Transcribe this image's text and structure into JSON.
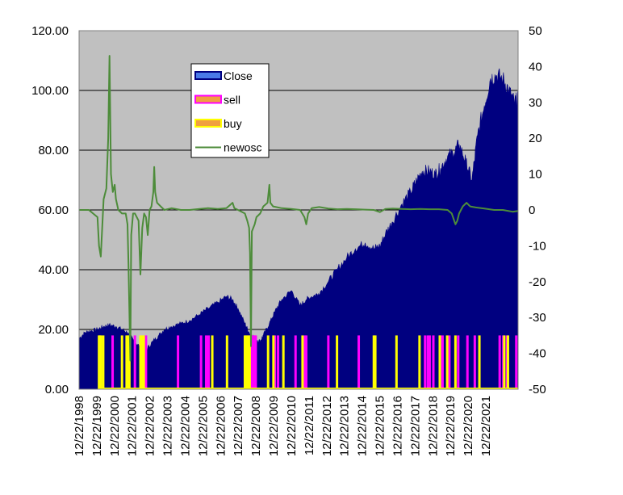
{
  "chart_data": {
    "type": "area",
    "x_tick_labels": [
      "12/22/1998",
      "12/22/1999",
      "12/22/2000",
      "12/22/2001",
      "12/22/2002",
      "12/22/2003",
      "12/22/2004",
      "12/22/2005",
      "12/22/2006",
      "12/22/2007",
      "12/22/2008",
      "12/22/2009",
      "12/22/2010",
      "12/22/2011",
      "12/22/2012",
      "12/22/2013",
      "12/22/2014",
      "12/22/2015",
      "12/22/2016",
      "12/22/2017",
      "12/22/2018",
      "12/22/2019",
      "12/22/2020",
      "12/22/2021"
    ],
    "y_left": {
      "min": 0,
      "max": 120,
      "step": 20,
      "tick_labels": [
        "0.00",
        "20.00",
        "40.00",
        "60.00",
        "80.00",
        "100.00",
        "120.00"
      ]
    },
    "y_right": {
      "min": -50,
      "max": 50,
      "step": 10,
      "tick_labels": [
        "-50",
        "-40",
        "-30",
        "-20",
        "-10",
        "0",
        "10",
        "20",
        "30",
        "40",
        "50"
      ]
    },
    "x_range": [
      1998.97,
      2022.8
    ],
    "grid": "horizontal major gridlines (left axis)",
    "plot_background": "#c0c0c0",
    "legend": {
      "placement": "upper-left inside plot",
      "entries": [
        {
          "label": "Close",
          "color": "#000080",
          "style": "area"
        },
        {
          "label": "sell",
          "color": "#ff00ff",
          "style": "bar"
        },
        {
          "label": "buy",
          "color": "#ffff00",
          "style": "bar"
        },
        {
          "label": "newosc",
          "color": "#4d8c3a",
          "style": "line"
        }
      ]
    },
    "series": [
      {
        "name": "Close",
        "axis": "left",
        "points": [
          [
            1998.97,
            17
          ],
          [
            1999.3,
            19
          ],
          [
            1999.6,
            19.5
          ],
          [
            1999.97,
            20
          ],
          [
            2000.3,
            21
          ],
          [
            2000.6,
            21.5
          ],
          [
            2000.97,
            21
          ],
          [
            2001.3,
            20
          ],
          [
            2001.6,
            19
          ],
          [
            2001.97,
            16
          ],
          [
            2002.3,
            14
          ],
          [
            2002.6,
            13
          ],
          [
            2002.97,
            16
          ],
          [
            2003.3,
            18
          ],
          [
            2003.6,
            20
          ],
          [
            2003.97,
            21
          ],
          [
            2004.5,
            22
          ],
          [
            2004.97,
            23
          ],
          [
            2005.5,
            25
          ],
          [
            2005.97,
            27
          ],
          [
            2006.5,
            29
          ],
          [
            2006.97,
            31
          ],
          [
            2007.3,
            30
          ],
          [
            2007.6,
            27
          ],
          [
            2007.97,
            22
          ],
          [
            2008.2,
            19
          ],
          [
            2008.5,
            17
          ],
          [
            2008.8,
            16
          ],
          [
            2008.97,
            18
          ],
          [
            2009.3,
            22
          ],
          [
            2009.6,
            26
          ],
          [
            2009.97,
            30
          ],
          [
            2010.5,
            33
          ],
          [
            2010.97,
            28
          ],
          [
            2011.3,
            30
          ],
          [
            2011.6,
            31
          ],
          [
            2011.97,
            32
          ],
          [
            2012.5,
            36
          ],
          [
            2012.97,
            40
          ],
          [
            2013.5,
            44
          ],
          [
            2013.97,
            47
          ],
          [
            2014.5,
            49
          ],
          [
            2014.97,
            47
          ],
          [
            2015.3,
            48
          ],
          [
            2015.6,
            52
          ],
          [
            2015.97,
            56
          ],
          [
            2016.5,
            62
          ],
          [
            2016.97,
            66
          ],
          [
            2017.3,
            70
          ],
          [
            2017.6,
            73
          ],
          [
            2017.97,
            73
          ],
          [
            2018.3,
            72
          ],
          [
            2018.6,
            74
          ],
          [
            2018.97,
            78
          ],
          [
            2019.3,
            79
          ],
          [
            2019.6,
            82
          ],
          [
            2019.97,
            76
          ],
          [
            2020.3,
            70
          ],
          [
            2020.6,
            85
          ],
          [
            2020.97,
            95
          ],
          [
            2021.3,
            104
          ],
          [
            2021.6,
            105
          ],
          [
            2021.97,
            104
          ],
          [
            2022.3,
            100
          ],
          [
            2022.6,
            96
          ],
          [
            2022.8,
            97
          ]
        ]
      },
      {
        "name": "newosc",
        "axis": "right",
        "points": [
          [
            1998.97,
            0
          ],
          [
            1999.5,
            0
          ],
          [
            1999.97,
            -2
          ],
          [
            2000.05,
            -10
          ],
          [
            2000.15,
            -13
          ],
          [
            2000.3,
            3
          ],
          [
            2000.45,
            6
          ],
          [
            2000.55,
            20
          ],
          [
            2000.62,
            43
          ],
          [
            2000.7,
            10
          ],
          [
            2000.8,
            5
          ],
          [
            2000.9,
            7
          ],
          [
            2000.97,
            3
          ],
          [
            2001.1,
            0
          ],
          [
            2001.3,
            -1
          ],
          [
            2001.5,
            -1
          ],
          [
            2001.6,
            -4
          ],
          [
            2001.65,
            -15
          ],
          [
            2001.7,
            -28
          ],
          [
            2001.75,
            -42
          ],
          [
            2001.8,
            -7
          ],
          [
            2001.9,
            -1
          ],
          [
            2002.0,
            -1
          ],
          [
            2002.2,
            -3
          ],
          [
            2002.3,
            -18
          ],
          [
            2002.4,
            -5
          ],
          [
            2002.5,
            -1
          ],
          [
            2002.6,
            -2
          ],
          [
            2002.7,
            -7
          ],
          [
            2002.8,
            0
          ],
          [
            2002.9,
            1
          ],
          [
            2003.0,
            5
          ],
          [
            2003.05,
            12
          ],
          [
            2003.1,
            5
          ],
          [
            2003.2,
            2
          ],
          [
            2003.4,
            1
          ],
          [
            2003.6,
            0
          ],
          [
            2004.0,
            0.5
          ],
          [
            2004.5,
            0
          ],
          [
            2004.97,
            0
          ],
          [
            2005.5,
            0.3
          ],
          [
            2005.97,
            0.5
          ],
          [
            2006.5,
            0.3
          ],
          [
            2006.97,
            0.5
          ],
          [
            2007.3,
            2
          ],
          [
            2007.4,
            0.5
          ],
          [
            2007.6,
            0
          ],
          [
            2007.97,
            -1
          ],
          [
            2008.1,
            -3
          ],
          [
            2008.2,
            -5
          ],
          [
            2008.25,
            -12
          ],
          [
            2008.3,
            -38
          ],
          [
            2008.35,
            -6
          ],
          [
            2008.5,
            -4
          ],
          [
            2008.6,
            -2
          ],
          [
            2008.8,
            -1
          ],
          [
            2008.97,
            1
          ],
          [
            2009.2,
            2
          ],
          [
            2009.3,
            7
          ],
          [
            2009.35,
            2
          ],
          [
            2009.5,
            1
          ],
          [
            2009.97,
            0.5
          ],
          [
            2010.5,
            0.3
          ],
          [
            2010.97,
            0
          ],
          [
            2011.2,
            -2
          ],
          [
            2011.3,
            -4
          ],
          [
            2011.4,
            -1
          ],
          [
            2011.6,
            0.5
          ],
          [
            2012.0,
            0.8
          ],
          [
            2012.5,
            0.4
          ],
          [
            2013.0,
            0.2
          ],
          [
            2013.5,
            0.3
          ],
          [
            2014.0,
            0.2
          ],
          [
            2014.5,
            0.1
          ],
          [
            2014.97,
            0
          ],
          [
            2015.3,
            -0.6
          ],
          [
            2015.6,
            0.3
          ],
          [
            2016.0,
            0.4
          ],
          [
            2016.5,
            0.3
          ],
          [
            2016.97,
            0.2
          ],
          [
            2017.5,
            0.3
          ],
          [
            2017.97,
            0.2
          ],
          [
            2018.5,
            0.2
          ],
          [
            2018.97,
            0
          ],
          [
            2019.2,
            -1
          ],
          [
            2019.4,
            -4
          ],
          [
            2019.5,
            -3
          ],
          [
            2019.6,
            -1
          ],
          [
            2019.8,
            1
          ],
          [
            2020.0,
            2
          ],
          [
            2020.2,
            1
          ],
          [
            2020.5,
            0.7
          ],
          [
            2020.97,
            0.4
          ],
          [
            2021.5,
            0
          ],
          [
            2021.97,
            0
          ],
          [
            2022.5,
            -0.5
          ],
          [
            2022.8,
            -0.3
          ]
        ]
      }
    ],
    "signals": {
      "sell": [
        2000.79,
        2002.0,
        2002.6,
        2004.34,
        2005.59,
        2005.87,
        2006.0,
        2008.2,
        2008.28,
        2008.33,
        2008.38,
        2008.44,
        2008.5,
        2008.56,
        2009.6,
        2009.77,
        2010.72,
        2011.2,
        2011.3,
        2012.5,
        2014.15,
        2017.75,
        2017.9,
        2018.0,
        2018.2,
        2018.57,
        2018.7,
        2019.07,
        2019.55,
        2020.05,
        2020.45,
        2021.8,
        2022.0,
        2022.2,
        2022.7
      ],
      "buy": [
        2000.05,
        2000.1,
        2000.15,
        2000.28,
        2001.3,
        2001.55,
        2001.62,
        2001.7,
        2002.3,
        2002.4,
        2002.48,
        2006.2,
        2007.0,
        2007.97,
        2008.05,
        2008.12,
        2008.23,
        2009.23,
        2009.52,
        2010.06,
        2011.1,
        2012.97,
        2014.97,
        2015.05,
        2016.2,
        2017.45,
        2018.55,
        2018.95,
        2019.4,
        2020.7,
        2022.05,
        2022.25
      ]
    }
  }
}
